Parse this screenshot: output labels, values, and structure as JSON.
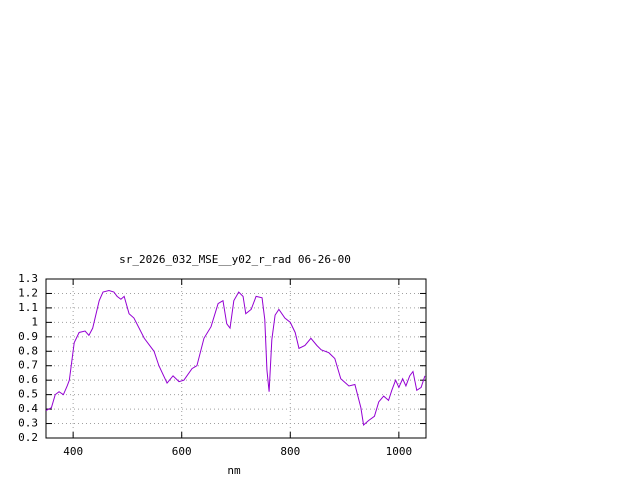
{
  "chart_data": {
    "type": "line",
    "title": "sr_2026_032_MSE__y02_r_rad 06-26-00",
    "x_label": "nm",
    "xlim": [
      350,
      1050
    ],
    "ylim": [
      0.2,
      1.3
    ],
    "xticks": [
      400,
      600,
      800,
      1000
    ],
    "yticks": [
      0.2,
      0.3,
      0.4,
      0.5,
      0.6,
      0.7,
      0.8,
      0.9,
      1,
      1.1,
      1.2,
      1.3
    ],
    "grid": true,
    "series": [
      {
        "color": "#9400d3",
        "x": [
          350,
          360,
          367,
          374,
          382,
          389,
          393,
          402,
          411,
          422,
          429,
          436,
          448,
          455,
          466,
          475,
          481,
          488,
          494,
          503,
          512,
          531,
          549,
          558,
          573,
          584,
          595,
          604,
          619,
          628,
          641,
          654,
          667,
          676,
          683,
          689,
          696,
          705,
          713,
          718,
          728,
          737,
          748,
          753,
          757,
          761,
          766,
          772,
          779,
          790,
          800,
          809,
          816,
          827,
          838,
          849,
          857,
          871,
          882,
          893,
          908,
          919,
          930,
          935,
          944,
          955,
          963,
          972,
          981,
          987,
          994,
          1000,
          1007,
          1013,
          1020,
          1026,
          1033,
          1041,
          1048
        ],
        "values": [
          0.39,
          0.41,
          0.5,
          0.52,
          0.5,
          0.56,
          0.6,
          0.86,
          0.93,
          0.94,
          0.91,
          0.96,
          1.15,
          1.21,
          1.22,
          1.21,
          1.18,
          1.16,
          1.18,
          1.06,
          1.03,
          0.89,
          0.8,
          0.7,
          0.58,
          0.63,
          0.59,
          0.6,
          0.68,
          0.7,
          0.89,
          0.97,
          1.13,
          1.15,
          0.99,
          0.96,
          1.15,
          1.21,
          1.18,
          1.06,
          1.09,
          1.18,
          1.17,
          1.02,
          0.67,
          0.52,
          0.88,
          1.05,
          1.09,
          1.03,
          1.0,
          0.93,
          0.82,
          0.84,
          0.89,
          0.84,
          0.81,
          0.79,
          0.75,
          0.61,
          0.56,
          0.57,
          0.41,
          0.29,
          0.32,
          0.35,
          0.45,
          0.49,
          0.46,
          0.53,
          0.6,
          0.55,
          0.61,
          0.56,
          0.63,
          0.66,
          0.53,
          0.55,
          0.63
        ]
      }
    ]
  }
}
